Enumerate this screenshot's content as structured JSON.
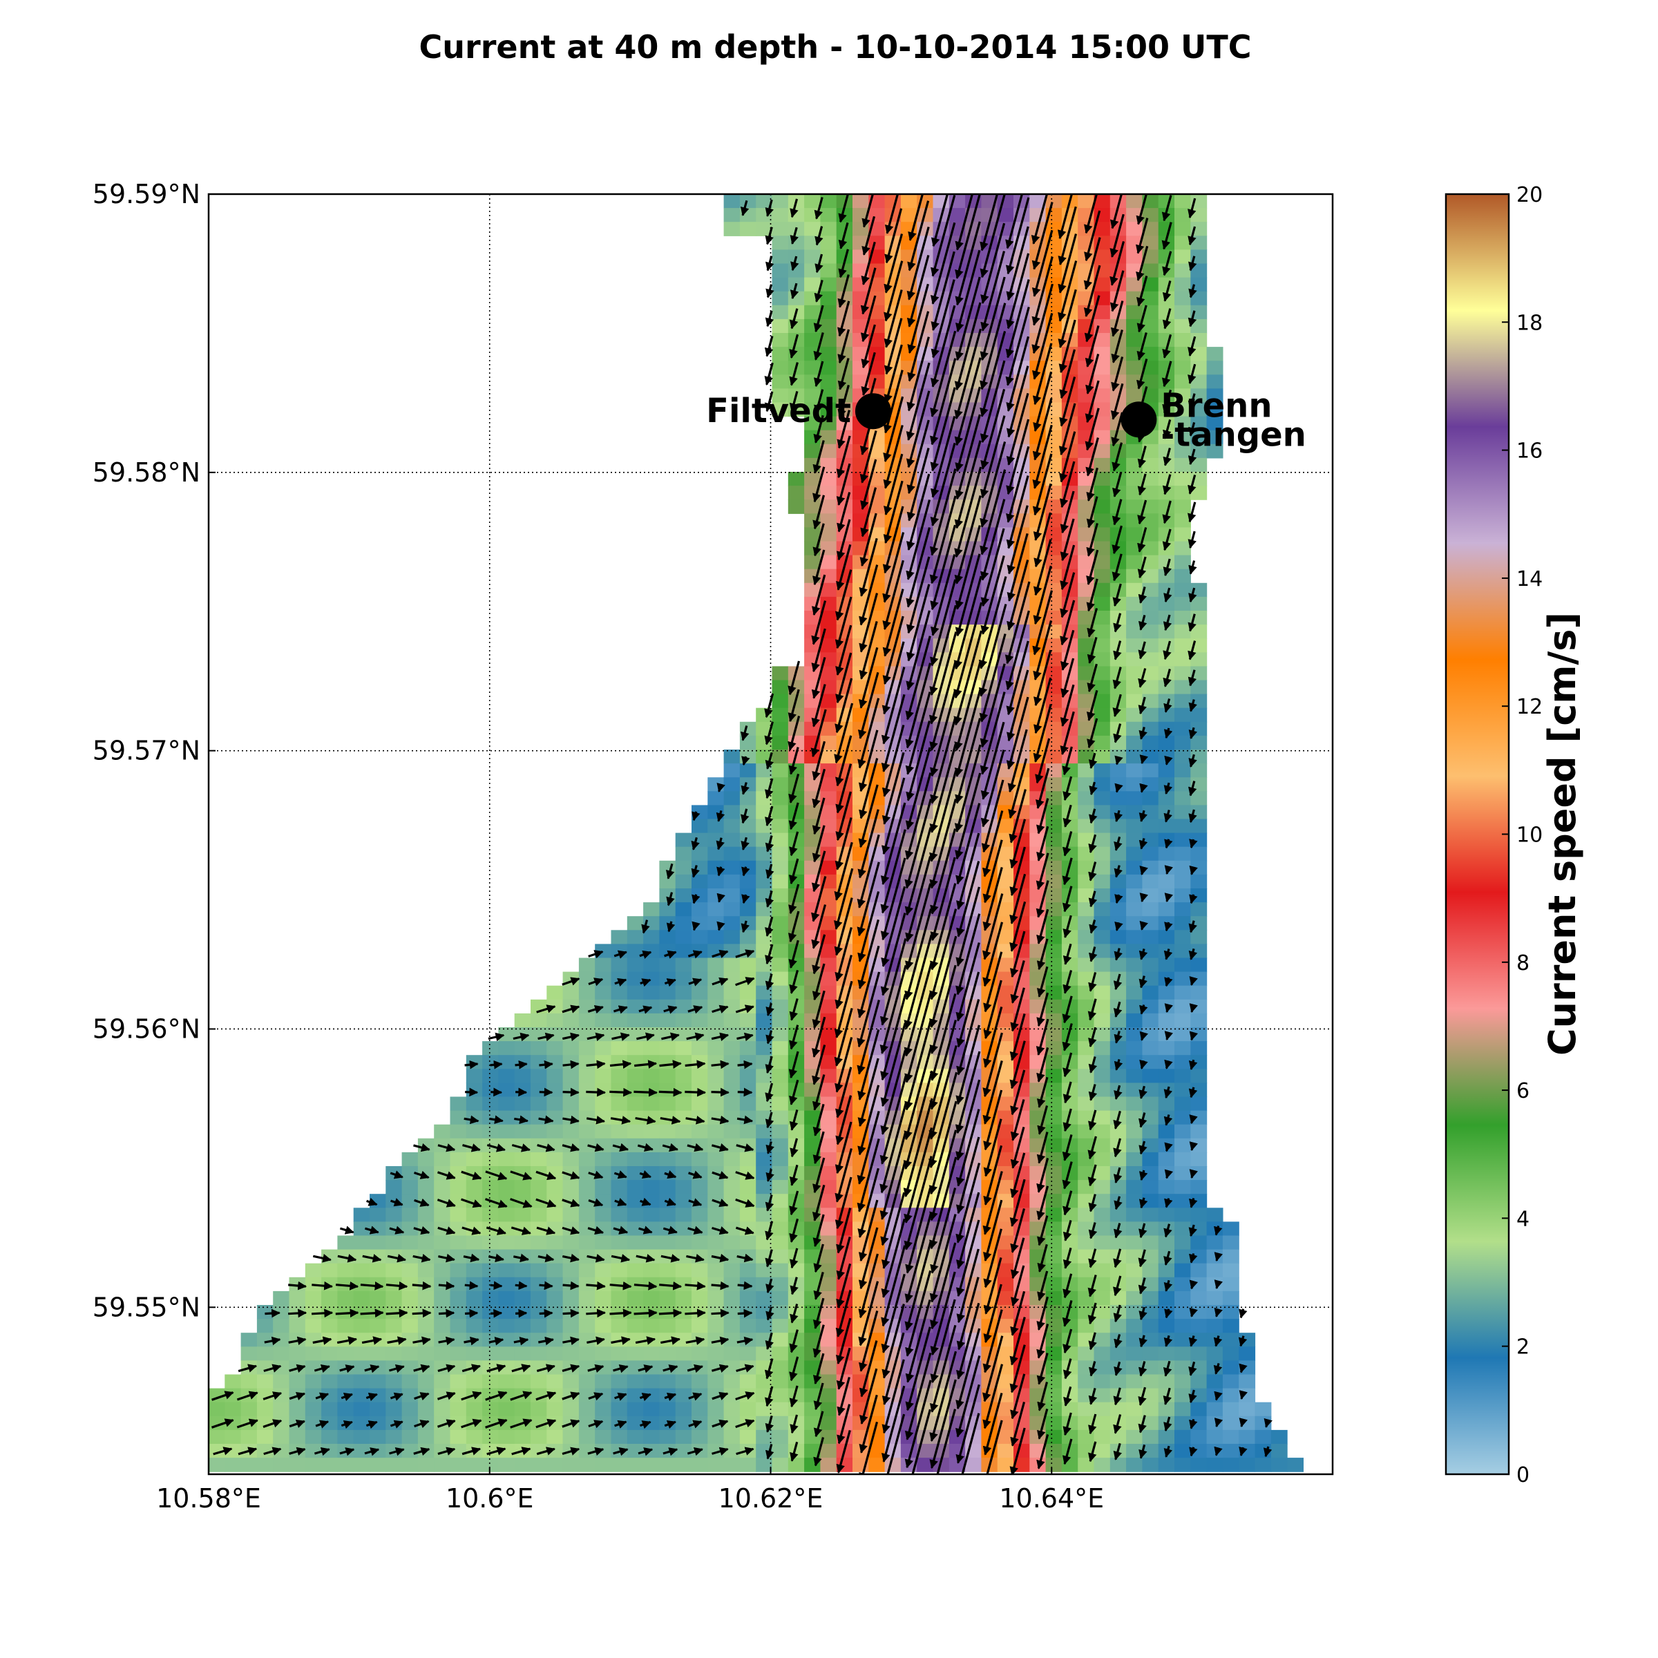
{
  "title": "Current at 40 m depth - 10-10-2014 15:00 UTC",
  "map": {
    "x_ticks": [
      "10.58°E",
      "10.6°E",
      "10.62°E",
      "10.64°E"
    ],
    "y_ticks": [
      "59.59°N",
      "59.58°N",
      "59.57°N",
      "59.56°N",
      "59.55°N"
    ],
    "lon_range": [
      10.58,
      10.66
    ],
    "lat_range": [
      59.544,
      59.59
    ],
    "grid": "dotted",
    "stations": [
      {
        "name": "Filtvedt",
        "lon": 10.6273,
        "lat": 59.5822
      },
      {
        "name_line1": "Brenn",
        "name_line2": "-tangen",
        "lon": 10.6462,
        "lat": 59.5819
      }
    ],
    "dominant_flow": "south-southwest"
  },
  "colorbar": {
    "label": "Current speed [cm/s]",
    "range": [
      0,
      20
    ],
    "ticks": [
      "0",
      "2",
      "4",
      "6",
      "8",
      "10",
      "12",
      "14",
      "16",
      "18",
      "20"
    ],
    "colormap": "Paired",
    "colors": [
      "#a6cee3",
      "#1f78b4",
      "#b2df8a",
      "#33a02c",
      "#fb9a99",
      "#e31a1c",
      "#fdbf6f",
      "#ff7f00",
      "#cab2d6",
      "#6a3d9a",
      "#ffff99",
      "#b15928"
    ]
  }
}
